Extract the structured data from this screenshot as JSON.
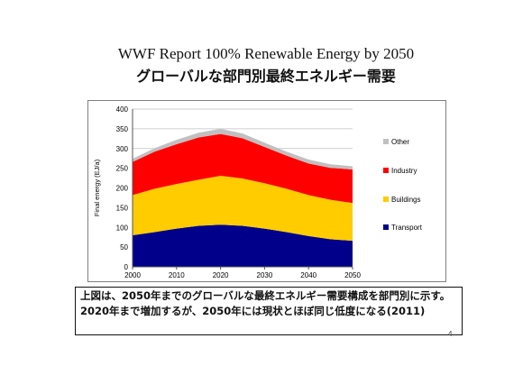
{
  "slide": {
    "title": "WWF Report   100% Renewable Energy by 2050",
    "subtitle": "グローバルな部門別最終エネルギー需要",
    "caption": "上図は、2050年までのグローバルな最終エネルギー需要構成を部門別に示す。2020年まで増加するが、2050年には現状とほぼ同じ低度になる(2011)",
    "page_number": "4"
  },
  "chart_data": {
    "type": "area",
    "stacked": true,
    "title": "",
    "xlabel": "",
    "ylabel": "Final energy (EJ/a)",
    "x": [
      2000,
      2005,
      2010,
      2015,
      2020,
      2025,
      2030,
      2035,
      2040,
      2045,
      2050
    ],
    "xticks": [
      2000,
      2010,
      2020,
      2030,
      2040,
      2050
    ],
    "ylim": [
      0,
      400
    ],
    "yticks": [
      0,
      50,
      100,
      150,
      200,
      250,
      300,
      350,
      400
    ],
    "grid": "horizontal",
    "legend_position": "right",
    "series": [
      {
        "name": "Transport",
        "color": "#00008B",
        "values": [
          80,
          88,
          97,
          104,
          107,
          104,
          97,
          88,
          78,
          70,
          66
        ]
      },
      {
        "name": "Buildings",
        "color": "#FFCC00",
        "values": [
          102,
          110,
          113,
          117,
          124,
          120,
          115,
          110,
          104,
          100,
          96
        ]
      },
      {
        "name": "Industry",
        "color": "#FF0000",
        "values": [
          84,
          94,
          101,
          107,
          106,
          102,
          92,
          84,
          80,
          81,
          85
        ]
      },
      {
        "name": "Other",
        "color": "#C0C0C0",
        "values": [
          8,
          9,
          11,
          12,
          13,
          12,
          11,
          10,
          10,
          9,
          8
        ]
      }
    ],
    "legend_order": [
      "Other",
      "Industry",
      "Buildings",
      "Transport"
    ]
  }
}
